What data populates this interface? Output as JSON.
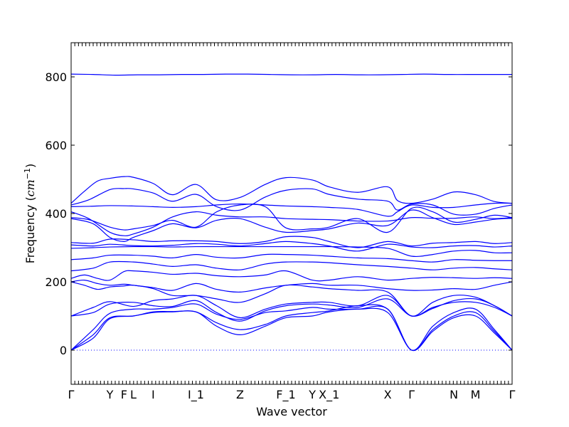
{
  "chart_data": {
    "type": "line",
    "title": "",
    "xlabel": "Wave vector",
    "ylabel": "Frequency ($cm^{-1}$)",
    "ylabel_parts": {
      "text": "Frequency (",
      "math": "cm",
      "exp": "−1",
      "close": ")"
    },
    "ylim": [
      -100,
      900
    ],
    "xlim": [
      0,
      1
    ],
    "grid": false,
    "legend": "none",
    "line_color": "#0000ff",
    "yticks": [
      0,
      200,
      400,
      600,
      800
    ],
    "ytick_labels": [
      "0",
      "200",
      "400",
      "600",
      "800"
    ],
    "high_symmetry_points": [
      {
        "label": "Γ",
        "x": 0.0
      },
      {
        "label": "Y",
        "x": 0.088
      },
      {
        "label": "F",
        "x": 0.12
      },
      {
        "label": "L",
        "x": 0.141
      },
      {
        "label": "I",
        "x": 0.186
      },
      {
        "label": "I_1",
        "x": 0.283
      },
      {
        "label": "Z",
        "x": 0.383
      },
      {
        "label": "F_1",
        "x": 0.487
      },
      {
        "label": "Y",
        "x": 0.547
      },
      {
        "label": "X_1",
        "x": 0.585
      },
      {
        "label": "X",
        "x": 0.718
      },
      {
        "label": "Γ",
        "x": 0.772
      },
      {
        "label": "N",
        "x": 0.868
      },
      {
        "label": "M",
        "x": 0.917
      },
      {
        "label": "Γ",
        "x": 1.0
      }
    ],
    "zero_line": 0,
    "series": [
      {
        "x": [
          0,
          0.05,
          0.1,
          0.15,
          0.2,
          0.25,
          0.3,
          0.35,
          0.4,
          0.45,
          0.5,
          0.55,
          0.6,
          0.65,
          0.7,
          0.75,
          0.8,
          0.85,
          0.9,
          0.95,
          1.0
        ],
        "values": [
          808,
          807,
          805,
          806,
          806,
          807,
          807,
          808,
          808,
          807,
          806,
          806,
          807,
          806,
          806,
          807,
          808,
          807,
          807,
          807,
          807
        ]
      },
      {
        "x": [
          0,
          0.03,
          0.06,
          0.088,
          0.12,
          0.141,
          0.186,
          0.23,
          0.283,
          0.33,
          0.383,
          0.44,
          0.487,
          0.547,
          0.585,
          0.65,
          0.718,
          0.74,
          0.772,
          0.82,
          0.868,
          0.917,
          0.96,
          1.0
        ],
        "values": [
          430,
          465,
          495,
          503,
          508,
          506,
          488,
          455,
          485,
          440,
          447,
          485,
          505,
          498,
          478,
          462,
          478,
          438,
          430,
          442,
          463,
          455,
          435,
          430
        ]
      },
      {
        "x": [
          0,
          0.04,
          0.088,
          0.12,
          0.141,
          0.186,
          0.23,
          0.283,
          0.33,
          0.383,
          0.44,
          0.487,
          0.547,
          0.585,
          0.65,
          0.718,
          0.74,
          0.772,
          0.82,
          0.868,
          0.917,
          0.96,
          1.0
        ],
        "values": [
          425,
          440,
          470,
          473,
          472,
          460,
          436,
          456,
          420,
          410,
          448,
          468,
          472,
          456,
          442,
          436,
          410,
          428,
          425,
          398,
          398,
          415,
          425
        ]
      },
      {
        "x": [
          0,
          0.04,
          0.088,
          0.141,
          0.186,
          0.23,
          0.283,
          0.33,
          0.383,
          0.44,
          0.487,
          0.547,
          0.585,
          0.65,
          0.718,
          0.74,
          0.772,
          0.82,
          0.868,
          0.917,
          0.96,
          1.0
        ],
        "values": [
          420,
          421,
          423,
          422,
          420,
          418,
          420,
          425,
          428,
          425,
          422,
          420,
          418,
          412,
          392,
          405,
          425,
          418,
          418,
          425,
          430,
          430
        ]
      },
      {
        "x": [
          0,
          0.04,
          0.088,
          0.12,
          0.141,
          0.186,
          0.23,
          0.283,
          0.33,
          0.383,
          0.44,
          0.487,
          0.547,
          0.585,
          0.65,
          0.718,
          0.772,
          0.82,
          0.868,
          0.917,
          0.96,
          1.0
        ],
        "values": [
          405,
          385,
          345,
          335,
          340,
          360,
          390,
          405,
          395,
          390,
          390,
          385,
          383,
          382,
          378,
          378,
          388,
          386,
          386,
          390,
          385,
          388
        ]
      },
      {
        "x": [
          0,
          0.04,
          0.088,
          0.12,
          0.141,
          0.186,
          0.23,
          0.283,
          0.33,
          0.383,
          0.44,
          0.487,
          0.547,
          0.585,
          0.65,
          0.718,
          0.772,
          0.82,
          0.868,
          0.917,
          0.96,
          1.0
        ],
        "values": [
          388,
          382,
          360,
          352,
          355,
          365,
          380,
          360,
          405,
          425,
          420,
          358,
          355,
          360,
          385,
          345,
          415,
          405,
          375,
          383,
          395,
          388
        ]
      },
      {
        "x": [
          0,
          0.05,
          0.088,
          0.12,
          0.141,
          0.186,
          0.23,
          0.283,
          0.33,
          0.383,
          0.44,
          0.487,
          0.547,
          0.585,
          0.65,
          0.718,
          0.772,
          0.82,
          0.868,
          0.917,
          0.96,
          1.0
        ],
        "values": [
          385,
          370,
          330,
          318,
          330,
          350,
          370,
          358,
          380,
          385,
          360,
          345,
          350,
          355,
          372,
          365,
          410,
          388,
          368,
          375,
          383,
          386
        ]
      },
      {
        "x": [
          0,
          0.05,
          0.088,
          0.141,
          0.186,
          0.23,
          0.283,
          0.33,
          0.383,
          0.44,
          0.487,
          0.547,
          0.585,
          0.65,
          0.718,
          0.772,
          0.82,
          0.868,
          0.917,
          0.96,
          1.0
        ],
        "values": [
          315,
          313,
          325,
          323,
          318,
          320,
          320,
          318,
          312,
          318,
          332,
          330,
          318,
          300,
          318,
          305,
          313,
          315,
          318,
          312,
          315
        ]
      },
      {
        "x": [
          0,
          0.05,
          0.088,
          0.141,
          0.186,
          0.23,
          0.283,
          0.33,
          0.383,
          0.44,
          0.487,
          0.547,
          0.585,
          0.65,
          0.718,
          0.772,
          0.82,
          0.868,
          0.917,
          0.96,
          1.0
        ],
        "values": [
          308,
          305,
          310,
          306,
          305,
          307,
          312,
          310,
          305,
          312,
          318,
          312,
          305,
          290,
          310,
          302,
          300,
          305,
          306,
          302,
          305
        ]
      },
      {
        "x": [
          0,
          0.05,
          0.088,
          0.141,
          0.186,
          0.23,
          0.283,
          0.33,
          0.383,
          0.44,
          0.487,
          0.547,
          0.585,
          0.65,
          0.718,
          0.772,
          0.82,
          0.868,
          0.917,
          0.96,
          1.0
        ],
        "values": [
          298,
          300,
          302,
          303,
          303,
          302,
          303,
          303,
          303,
          303,
          303,
          303,
          303,
          302,
          298,
          275,
          280,
          290,
          292,
          285,
          285
        ]
      },
      {
        "x": [
          0,
          0.05,
          0.088,
          0.141,
          0.186,
          0.23,
          0.283,
          0.33,
          0.383,
          0.44,
          0.487,
          0.547,
          0.585,
          0.65,
          0.718,
          0.772,
          0.82,
          0.868,
          0.917,
          0.96,
          1.0
        ],
        "values": [
          265,
          270,
          278,
          278,
          275,
          270,
          280,
          272,
          270,
          280,
          280,
          278,
          275,
          270,
          268,
          262,
          258,
          265,
          263,
          262,
          262
        ]
      },
      {
        "x": [
          0,
          0.05,
          0.088,
          0.141,
          0.186,
          0.23,
          0.283,
          0.33,
          0.383,
          0.44,
          0.487,
          0.547,
          0.585,
          0.65,
          0.718,
          0.772,
          0.82,
          0.868,
          0.917,
          0.96,
          1.0
        ],
        "values": [
          232,
          240,
          258,
          258,
          252,
          245,
          250,
          240,
          235,
          252,
          258,
          258,
          256,
          250,
          245,
          240,
          235,
          240,
          242,
          238,
          235
        ]
      },
      {
        "x": [
          0,
          0.03,
          0.06,
          0.088,
          0.12,
          0.141,
          0.186,
          0.23,
          0.283,
          0.33,
          0.383,
          0.44,
          0.487,
          0.547,
          0.585,
          0.65,
          0.718,
          0.772,
          0.82,
          0.868,
          0.917,
          0.96,
          1.0
        ],
        "values": [
          210,
          220,
          210,
          205,
          230,
          232,
          228,
          222,
          225,
          218,
          215,
          220,
          232,
          205,
          205,
          215,
          205,
          210,
          213,
          212,
          210,
          212,
          210
        ]
      },
      {
        "x": [
          0,
          0.03,
          0.06,
          0.088,
          0.12,
          0.141,
          0.186,
          0.23,
          0.283,
          0.33,
          0.383,
          0.44,
          0.487,
          0.547,
          0.585,
          0.65,
          0.718,
          0.772,
          0.82,
          0.868,
          0.917,
          0.96,
          1.0
        ],
        "values": [
          200,
          205,
          195,
          190,
          193,
          190,
          183,
          175,
          195,
          178,
          170,
          182,
          190,
          195,
          190,
          190,
          180,
          175,
          176,
          180,
          178,
          190,
          200
        ]
      },
      {
        "x": [
          0,
          0.03,
          0.06,
          0.088,
          0.12,
          0.141,
          0.186,
          0.23,
          0.283,
          0.33,
          0.383,
          0.44,
          0.487,
          0.547,
          0.585,
          0.65,
          0.718,
          0.772,
          0.82,
          0.868,
          0.917,
          0.96,
          1.0
        ],
        "values": [
          200,
          190,
          178,
          185,
          188,
          190,
          180,
          160,
          160,
          150,
          140,
          165,
          190,
          185,
          180,
          175,
          170,
          100,
          140,
          160,
          155,
          130,
          100
        ]
      },
      {
        "x": [
          0,
          0.05,
          0.088,
          0.141,
          0.186,
          0.23,
          0.283,
          0.33,
          0.383,
          0.44,
          0.487,
          0.547,
          0.585,
          0.65,
          0.718,
          0.772,
          0.82,
          0.868,
          0.917,
          0.96,
          1.0
        ],
        "values": [
          100,
          125,
          142,
          128,
          145,
          150,
          160,
          130,
          95,
          120,
          135,
          140,
          140,
          130,
          160,
          100,
          125,
          140,
          140,
          125,
          100
        ]
      },
      {
        "x": [
          0,
          0.05,
          0.088,
          0.141,
          0.186,
          0.23,
          0.283,
          0.33,
          0.383,
          0.44,
          0.487,
          0.547,
          0.585,
          0.65,
          0.718,
          0.772,
          0.82,
          0.868,
          0.917,
          0.96,
          1.0
        ],
        "values": [
          100,
          110,
          135,
          140,
          130,
          128,
          145,
          110,
          85,
          115,
          130,
          135,
          132,
          125,
          150,
          100,
          122,
          145,
          150,
          130,
          100
        ]
      },
      {
        "x": [
          0,
          0.05,
          0.088,
          0.141,
          0.186,
          0.23,
          0.283,
          0.33,
          0.383,
          0.44,
          0.487,
          0.547,
          0.585,
          0.65,
          0.718,
          0.772,
          0.82,
          0.868,
          0.917,
          0.96,
          1.0
        ],
        "values": [
          0,
          60,
          108,
          120,
          120,
          125,
          135,
          105,
          90,
          110,
          115,
          125,
          120,
          120,
          120,
          0,
          70,
          110,
          120,
          60,
          0
        ]
      },
      {
        "x": [
          0,
          0.05,
          0.088,
          0.141,
          0.186,
          0.23,
          0.283,
          0.33,
          0.383,
          0.44,
          0.487,
          0.547,
          0.585,
          0.65,
          0.718,
          0.772,
          0.82,
          0.868,
          0.917,
          0.96,
          1.0
        ],
        "values": [
          0,
          45,
          95,
          100,
          112,
          113,
          112,
          80,
          60,
          75,
          100,
          110,
          115,
          130,
          120,
          0,
          60,
          100,
          110,
          55,
          0
        ]
      },
      {
        "x": [
          0,
          0.05,
          0.088,
          0.141,
          0.186,
          0.23,
          0.283,
          0.33,
          0.383,
          0.44,
          0.487,
          0.547,
          0.585,
          0.65,
          0.718,
          0.772,
          0.82,
          0.868,
          0.917,
          0.96,
          1.0
        ],
        "values": [
          0,
          35,
          92,
          100,
          110,
          112,
          112,
          70,
          45,
          70,
          95,
          100,
          112,
          120,
          110,
          0,
          55,
          95,
          100,
          50,
          0
        ]
      }
    ]
  }
}
